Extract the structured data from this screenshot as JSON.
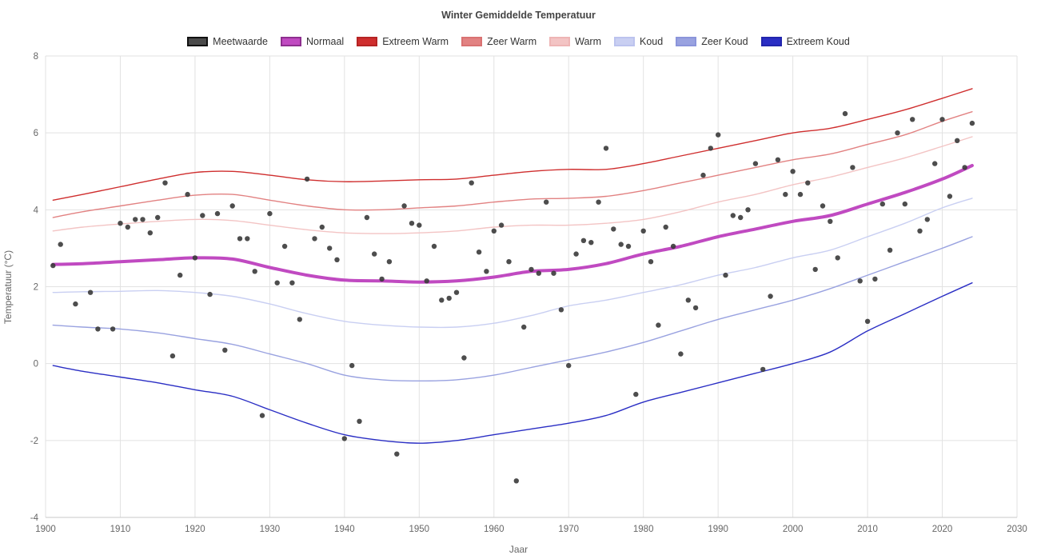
{
  "chart_data": {
    "type": "scatter+line",
    "title": "Winter Gemiddelde Temperatuur",
    "xlabel": "Jaar",
    "ylabel": "Temperatuur (°C)",
    "xlim": [
      1900,
      2030
    ],
    "ylim": [
      -4,
      8
    ],
    "x_ticks": [
      1900,
      1910,
      1920,
      1930,
      1940,
      1950,
      1960,
      1970,
      1980,
      1990,
      2000,
      2010,
      2020,
      2030
    ],
    "y_ticks": [
      -4,
      -2,
      0,
      2,
      4,
      6,
      8
    ],
    "grid": "on",
    "legend_position": "top-center",
    "legend": [
      {
        "label": "Meetwaarde",
        "color": "#4a4a4a",
        "border": "#111111"
      },
      {
        "label": "Normaal",
        "color": "#c04ac1",
        "border": "#8e2f8f"
      },
      {
        "label": "Extreem Warm",
        "color": "#cf2e2e",
        "border": "#b52424"
      },
      {
        "label": "Zeer Warm",
        "color": "#e28282",
        "border": "#d97272"
      },
      {
        "label": "Warm",
        "color": "#f3c4c4",
        "border": "#eeb5b5"
      },
      {
        "label": "Koud",
        "color": "#c9cff2",
        "border": "#bcc3ee"
      },
      {
        "label": "Zeer Koud",
        "color": "#99a2e0",
        "border": "#8b95da"
      },
      {
        "label": "Extreem Koud",
        "color": "#2a2ec4",
        "border": "#2226ad"
      }
    ],
    "scatter": {
      "name": "Meetwaarde",
      "color": "#3a3a3a",
      "points": [
        [
          1901,
          2.55
        ],
        [
          1902,
          3.1
        ],
        [
          1904,
          1.55
        ],
        [
          1906,
          1.85
        ],
        [
          1907,
          0.9
        ],
        [
          1909,
          0.9
        ],
        [
          1910,
          3.65
        ],
        [
          1911,
          3.55
        ],
        [
          1912,
          3.75
        ],
        [
          1913,
          3.75
        ],
        [
          1914,
          3.4
        ],
        [
          1915,
          3.8
        ],
        [
          1916,
          4.7
        ],
        [
          1917,
          0.2
        ],
        [
          1918,
          2.3
        ],
        [
          1919,
          4.4
        ],
        [
          1920,
          2.75
        ],
        [
          1921,
          3.85
        ],
        [
          1922,
          1.8
        ],
        [
          1923,
          3.9
        ],
        [
          1924,
          0.35
        ],
        [
          1925,
          4.1
        ],
        [
          1926,
          3.25
        ],
        [
          1927,
          3.25
        ],
        [
          1928,
          2.4
        ],
        [
          1929,
          -1.35
        ],
        [
          1930,
          3.9
        ],
        [
          1931,
          2.1
        ],
        [
          1932,
          3.05
        ],
        [
          1933,
          2.1
        ],
        [
          1934,
          1.15
        ],
        [
          1935,
          4.8
        ],
        [
          1936,
          3.25
        ],
        [
          1937,
          3.55
        ],
        [
          1938,
          3.0
        ],
        [
          1939,
          2.7
        ],
        [
          1940,
          -1.95
        ],
        [
          1941,
          -0.05
        ],
        [
          1942,
          -1.5
        ],
        [
          1943,
          3.8
        ],
        [
          1944,
          2.85
        ],
        [
          1945,
          2.2
        ],
        [
          1946,
          2.65
        ],
        [
          1947,
          -2.35
        ],
        [
          1948,
          4.1
        ],
        [
          1949,
          3.65
        ],
        [
          1950,
          3.6
        ],
        [
          1951,
          2.15
        ],
        [
          1952,
          3.05
        ],
        [
          1953,
          1.65
        ],
        [
          1954,
          1.7
        ],
        [
          1955,
          1.85
        ],
        [
          1956,
          0.15
        ],
        [
          1957,
          4.7
        ],
        [
          1958,
          2.9
        ],
        [
          1959,
          2.4
        ],
        [
          1960,
          3.45
        ],
        [
          1961,
          3.6
        ],
        [
          1962,
          2.65
        ],
        [
          1963,
          -3.05
        ],
        [
          1964,
          0.95
        ],
        [
          1965,
          2.45
        ],
        [
          1966,
          2.35
        ],
        [
          1967,
          4.2
        ],
        [
          1968,
          2.35
        ],
        [
          1969,
          1.4
        ],
        [
          1970,
          -0.05
        ],
        [
          1971,
          2.85
        ],
        [
          1972,
          3.2
        ],
        [
          1973,
          3.15
        ],
        [
          1974,
          4.2
        ],
        [
          1975,
          5.6
        ],
        [
          1976,
          3.5
        ],
        [
          1977,
          3.1
        ],
        [
          1978,
          3.05
        ],
        [
          1979,
          -0.8
        ],
        [
          1980,
          3.45
        ],
        [
          1981,
          2.65
        ],
        [
          1982,
          1.0
        ],
        [
          1983,
          3.55
        ],
        [
          1984,
          3.05
        ],
        [
          1985,
          0.25
        ],
        [
          1986,
          1.65
        ],
        [
          1987,
          1.45
        ],
        [
          1988,
          4.9
        ],
        [
          1989,
          5.6
        ],
        [
          1990,
          5.95
        ],
        [
          1991,
          2.3
        ],
        [
          1992,
          3.85
        ],
        [
          1993,
          3.8
        ],
        [
          1994,
          4.0
        ],
        [
          1995,
          5.2
        ],
        [
          1996,
          -0.15
        ],
        [
          1997,
          1.75
        ],
        [
          1998,
          5.3
        ],
        [
          1999,
          4.4
        ],
        [
          2000,
          5.0
        ],
        [
          2001,
          4.4
        ],
        [
          2002,
          4.7
        ],
        [
          2003,
          2.45
        ],
        [
          2004,
          4.1
        ],
        [
          2005,
          3.7
        ],
        [
          2006,
          2.75
        ],
        [
          2007,
          6.5
        ],
        [
          2008,
          5.1
        ],
        [
          2009,
          2.15
        ],
        [
          2010,
          1.1
        ],
        [
          2011,
          2.2
        ],
        [
          2012,
          4.15
        ],
        [
          2013,
          2.95
        ],
        [
          2014,
          6.0
        ],
        [
          2015,
          4.15
        ],
        [
          2016,
          6.35
        ],
        [
          2017,
          3.45
        ],
        [
          2018,
          3.75
        ],
        [
          2019,
          5.2
        ],
        [
          2020,
          6.35
        ],
        [
          2021,
          4.35
        ],
        [
          2022,
          5.8
        ],
        [
          2023,
          5.1
        ],
        [
          2024,
          6.25
        ]
      ]
    },
    "lines": [
      {
        "name": "Extreem Warm",
        "color": "#cf2e2e",
        "width": 1.4,
        "points": [
          [
            1901,
            4.25
          ],
          [
            1905,
            4.4
          ],
          [
            1910,
            4.6
          ],
          [
            1915,
            4.8
          ],
          [
            1920,
            4.97
          ],
          [
            1925,
            5.0
          ],
          [
            1930,
            4.9
          ],
          [
            1935,
            4.78
          ],
          [
            1940,
            4.73
          ],
          [
            1945,
            4.75
          ],
          [
            1950,
            4.78
          ],
          [
            1955,
            4.8
          ],
          [
            1960,
            4.9
          ],
          [
            1965,
            5.0
          ],
          [
            1970,
            5.05
          ],
          [
            1975,
            5.05
          ],
          [
            1980,
            5.2
          ],
          [
            1985,
            5.4
          ],
          [
            1990,
            5.6
          ],
          [
            1995,
            5.8
          ],
          [
            2000,
            6.0
          ],
          [
            2005,
            6.12
          ],
          [
            2010,
            6.35
          ],
          [
            2015,
            6.6
          ],
          [
            2020,
            6.9
          ],
          [
            2024,
            7.15
          ]
        ]
      },
      {
        "name": "Zeer Warm",
        "color": "#e28282",
        "width": 1.4,
        "points": [
          [
            1901,
            3.8
          ],
          [
            1905,
            3.95
          ],
          [
            1910,
            4.1
          ],
          [
            1915,
            4.25
          ],
          [
            1920,
            4.38
          ],
          [
            1925,
            4.4
          ],
          [
            1930,
            4.25
          ],
          [
            1935,
            4.1
          ],
          [
            1940,
            4.0
          ],
          [
            1945,
            4.0
          ],
          [
            1950,
            4.05
          ],
          [
            1955,
            4.1
          ],
          [
            1960,
            4.2
          ],
          [
            1965,
            4.28
          ],
          [
            1970,
            4.3
          ],
          [
            1975,
            4.35
          ],
          [
            1980,
            4.5
          ],
          [
            1985,
            4.7
          ],
          [
            1990,
            4.9
          ],
          [
            1995,
            5.1
          ],
          [
            2000,
            5.3
          ],
          [
            2005,
            5.45
          ],
          [
            2010,
            5.7
          ],
          [
            2015,
            5.95
          ],
          [
            2020,
            6.3
          ],
          [
            2024,
            6.55
          ]
        ]
      },
      {
        "name": "Warm",
        "color": "#f3c4c4",
        "width": 1.4,
        "points": [
          [
            1901,
            3.45
          ],
          [
            1905,
            3.55
          ],
          [
            1910,
            3.63
          ],
          [
            1915,
            3.7
          ],
          [
            1920,
            3.75
          ],
          [
            1925,
            3.72
          ],
          [
            1930,
            3.6
          ],
          [
            1935,
            3.48
          ],
          [
            1940,
            3.4
          ],
          [
            1945,
            3.38
          ],
          [
            1950,
            3.4
          ],
          [
            1955,
            3.45
          ],
          [
            1960,
            3.55
          ],
          [
            1965,
            3.6
          ],
          [
            1970,
            3.6
          ],
          [
            1975,
            3.65
          ],
          [
            1980,
            3.75
          ],
          [
            1985,
            3.95
          ],
          [
            1990,
            4.2
          ],
          [
            1995,
            4.4
          ],
          [
            2000,
            4.65
          ],
          [
            2005,
            4.85
          ],
          [
            2010,
            5.1
          ],
          [
            2015,
            5.35
          ],
          [
            2020,
            5.65
          ],
          [
            2024,
            5.9
          ]
        ]
      },
      {
        "name": "Koud",
        "color": "#c9cff2",
        "width": 1.4,
        "points": [
          [
            1901,
            1.85
          ],
          [
            1905,
            1.87
          ],
          [
            1910,
            1.88
          ],
          [
            1915,
            1.9
          ],
          [
            1920,
            1.85
          ],
          [
            1925,
            1.75
          ],
          [
            1930,
            1.55
          ],
          [
            1935,
            1.3
          ],
          [
            1940,
            1.1
          ],
          [
            1945,
            1.0
          ],
          [
            1950,
            0.95
          ],
          [
            1955,
            0.95
          ],
          [
            1960,
            1.05
          ],
          [
            1965,
            1.25
          ],
          [
            1970,
            1.5
          ],
          [
            1975,
            1.65
          ],
          [
            1980,
            1.85
          ],
          [
            1985,
            2.05
          ],
          [
            1990,
            2.3
          ],
          [
            1995,
            2.5
          ],
          [
            2000,
            2.75
          ],
          [
            2005,
            2.95
          ],
          [
            2010,
            3.3
          ],
          [
            2015,
            3.65
          ],
          [
            2020,
            4.05
          ],
          [
            2024,
            4.3
          ]
        ]
      },
      {
        "name": "Zeer Koud",
        "color": "#99a2e0",
        "width": 1.4,
        "points": [
          [
            1901,
            1.0
          ],
          [
            1905,
            0.95
          ],
          [
            1910,
            0.9
          ],
          [
            1915,
            0.8
          ],
          [
            1920,
            0.65
          ],
          [
            1925,
            0.5
          ],
          [
            1930,
            0.25
          ],
          [
            1935,
            0.0
          ],
          [
            1940,
            -0.3
          ],
          [
            1945,
            -0.42
          ],
          [
            1950,
            -0.45
          ],
          [
            1955,
            -0.42
          ],
          [
            1960,
            -0.3
          ],
          [
            1965,
            -0.1
          ],
          [
            1970,
            0.1
          ],
          [
            1975,
            0.3
          ],
          [
            1980,
            0.55
          ],
          [
            1985,
            0.85
          ],
          [
            1990,
            1.15
          ],
          [
            1995,
            1.4
          ],
          [
            2000,
            1.65
          ],
          [
            2005,
            1.95
          ],
          [
            2010,
            2.3
          ],
          [
            2015,
            2.65
          ],
          [
            2020,
            3.0
          ],
          [
            2024,
            3.3
          ]
        ]
      },
      {
        "name": "Extreem Koud",
        "color": "#2a2ec4",
        "width": 1.4,
        "points": [
          [
            1901,
            -0.05
          ],
          [
            1905,
            -0.2
          ],
          [
            1910,
            -0.35
          ],
          [
            1915,
            -0.5
          ],
          [
            1920,
            -0.68
          ],
          [
            1925,
            -0.85
          ],
          [
            1930,
            -1.2
          ],
          [
            1935,
            -1.55
          ],
          [
            1940,
            -1.85
          ],
          [
            1945,
            -2.0
          ],
          [
            1950,
            -2.07
          ],
          [
            1955,
            -2.0
          ],
          [
            1960,
            -1.85
          ],
          [
            1965,
            -1.7
          ],
          [
            1970,
            -1.55
          ],
          [
            1975,
            -1.35
          ],
          [
            1980,
            -1.0
          ],
          [
            1985,
            -0.75
          ],
          [
            1990,
            -0.5
          ],
          [
            1995,
            -0.25
          ],
          [
            2000,
            0.0
          ],
          [
            2005,
            0.3
          ],
          [
            2010,
            0.85
          ],
          [
            2015,
            1.3
          ],
          [
            2020,
            1.75
          ],
          [
            2024,
            2.1
          ]
        ]
      },
      {
        "name": "Normaal",
        "color": "#c04ac1",
        "width": 4,
        "points": [
          [
            1901,
            2.58
          ],
          [
            1905,
            2.6
          ],
          [
            1910,
            2.65
          ],
          [
            1915,
            2.7
          ],
          [
            1920,
            2.75
          ],
          [
            1925,
            2.72
          ],
          [
            1930,
            2.5
          ],
          [
            1935,
            2.3
          ],
          [
            1940,
            2.17
          ],
          [
            1945,
            2.15
          ],
          [
            1950,
            2.12
          ],
          [
            1955,
            2.15
          ],
          [
            1960,
            2.25
          ],
          [
            1965,
            2.4
          ],
          [
            1970,
            2.45
          ],
          [
            1975,
            2.6
          ],
          [
            1980,
            2.85
          ],
          [
            1985,
            3.05
          ],
          [
            1990,
            3.3
          ],
          [
            1995,
            3.5
          ],
          [
            2000,
            3.7
          ],
          [
            2005,
            3.85
          ],
          [
            2010,
            4.15
          ],
          [
            2015,
            4.45
          ],
          [
            2020,
            4.8
          ],
          [
            2024,
            5.15
          ]
        ]
      }
    ],
    "colors": {
      "grid": "#e2e2e2",
      "axis_line": "#c8c8c8",
      "tick_label": "#666666",
      "title": "#444444"
    }
  }
}
